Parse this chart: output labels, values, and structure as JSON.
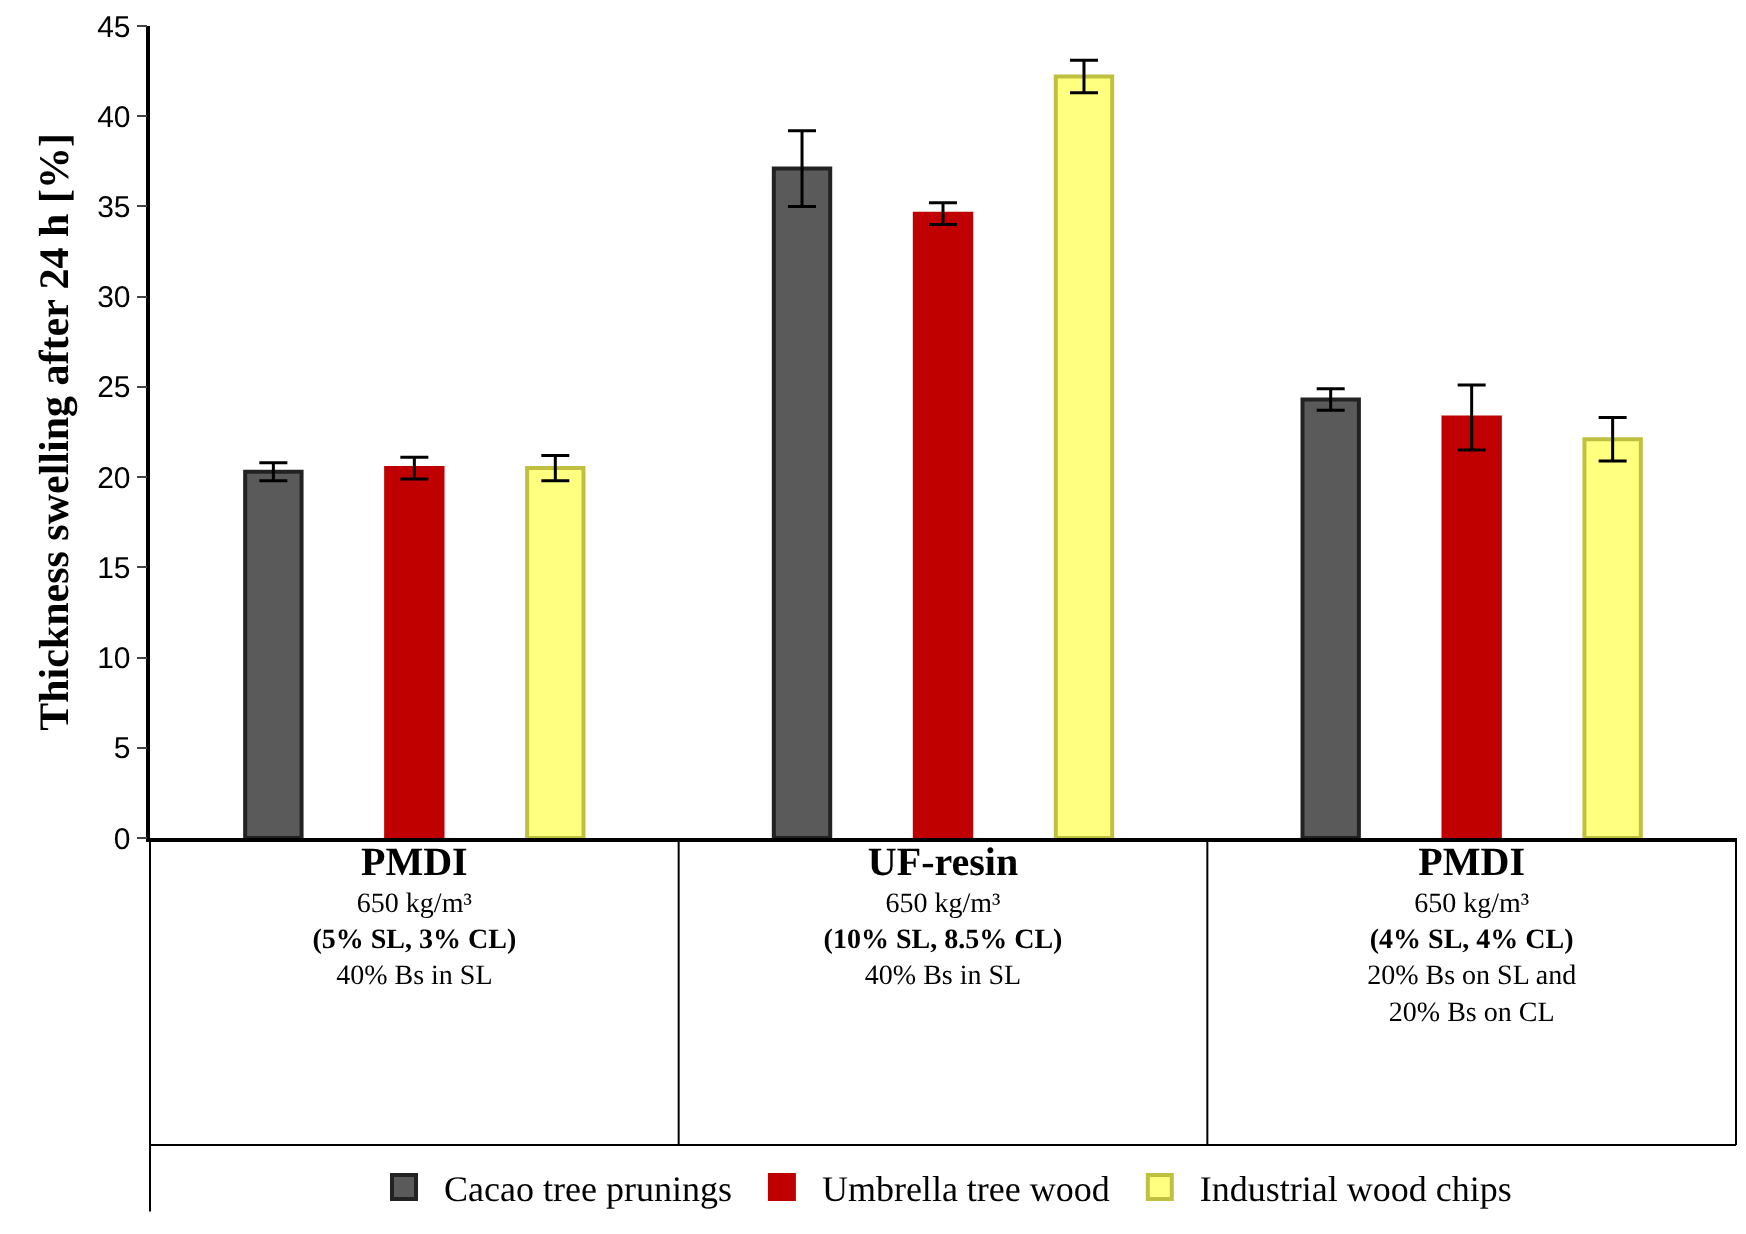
{
  "chart_data": {
    "type": "bar",
    "ylabel": "Thickness swelling after 24 h [%]",
    "categories": [
      "PMDI\n650 kg/m³\n(5% SL, 3% CL)\n40% Bs in SL",
      "UF-resin\n650 kg/m³\n(10% SL, 8.5% CL)\n40% Bs in SL",
      "PMDI\n650 kg/m³\n(4% SL, 4% CL)\n20% Bs on SL and\n20% Bs on CL"
    ],
    "series": [
      {
        "name": "Cacao tree prunings",
        "color": "#5a5a5a",
        "values": [
          20.3,
          37.1,
          24.3
        ],
        "errors": [
          0.5,
          2.1,
          0.6
        ]
      },
      {
        "name": "Umbrella tree wood",
        "color": "#c00000",
        "values": [
          20.5,
          34.6,
          23.3
        ],
        "errors": [
          0.6,
          0.6,
          1.8
        ]
      },
      {
        "name": "Industrial wood chips",
        "color": "#ffff80",
        "values": [
          20.5,
          42.2,
          22.1
        ],
        "errors": [
          0.7,
          0.9,
          1.2
        ]
      }
    ],
    "ylim": [
      0,
      45
    ],
    "yticks": [
      0,
      5,
      10,
      15,
      20,
      25,
      30,
      35,
      40,
      45
    ],
    "legend": "bottom"
  }
}
